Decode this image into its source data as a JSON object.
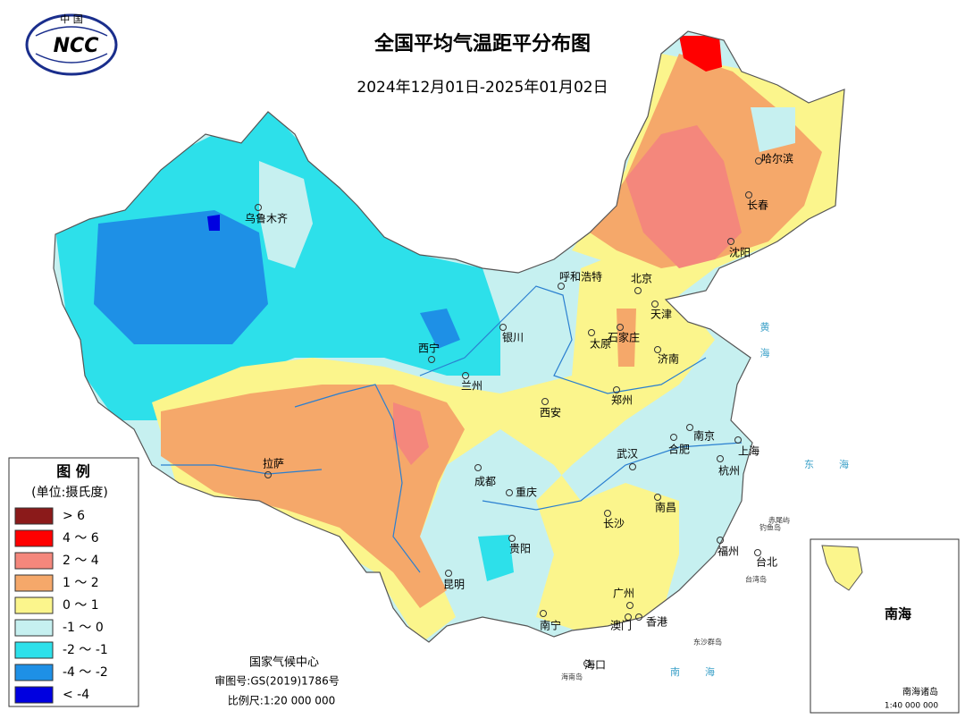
{
  "header": {
    "title": "全国平均气温距平分布图",
    "date_range": "2024年12月01日-2025年01月02日"
  },
  "logo": {
    "top": "中 国",
    "mark": "NCC"
  },
  "legend": {
    "title": "图 例",
    "unit": "(单位:摄氏度)",
    "items": [
      {
        "label": "> 6",
        "color": "#8b1a1a"
      },
      {
        "label": "4 ～ 6",
        "color": "#ff0000"
      },
      {
        "label": "2 ～ 4",
        "color": "#f4877c"
      },
      {
        "label": "1 ～ 2",
        "color": "#f5a86a"
      },
      {
        "label": "0 ～ 1",
        "color": "#fbf58c"
      },
      {
        "label": "-1 ～ 0",
        "color": "#c6f0f0"
      },
      {
        "label": "-2 ～ -1",
        "color": "#2de0ea"
      },
      {
        "label": "-4 ～ -2",
        "color": "#1e90e6"
      },
      {
        "label": "< -4",
        "color": "#0000e0"
      }
    ]
  },
  "cities": [
    "乌鲁木齐",
    "呼和浩特",
    "北京",
    "天津",
    "石家庄",
    "太原",
    "济南",
    "银川",
    "西宁",
    "兰州",
    "西安",
    "郑州",
    "拉萨",
    "成都",
    "重庆",
    "武汉",
    "合肥",
    "南京",
    "上海",
    "杭州",
    "南昌",
    "长沙",
    "贵阳",
    "福州",
    "台北",
    "昆明",
    "广州",
    "南宁",
    "澳门",
    "香港",
    "海口",
    "哈尔滨",
    "长春",
    "沈阳"
  ],
  "seas": [
    "黄海",
    "东海",
    "南海"
  ],
  "islands": [
    "钓鱼岛",
    "赤尾屿",
    "台湾岛",
    "海南岛",
    "东沙群岛"
  ],
  "inset": {
    "title": "南海",
    "label": "南海诸岛",
    "scale": "1:40 000 000"
  },
  "footer": {
    "agency": "国家气候中心",
    "review_no": "审图号:GS(2019)1786号",
    "scale": "比例尺:1:20 000 000"
  }
}
